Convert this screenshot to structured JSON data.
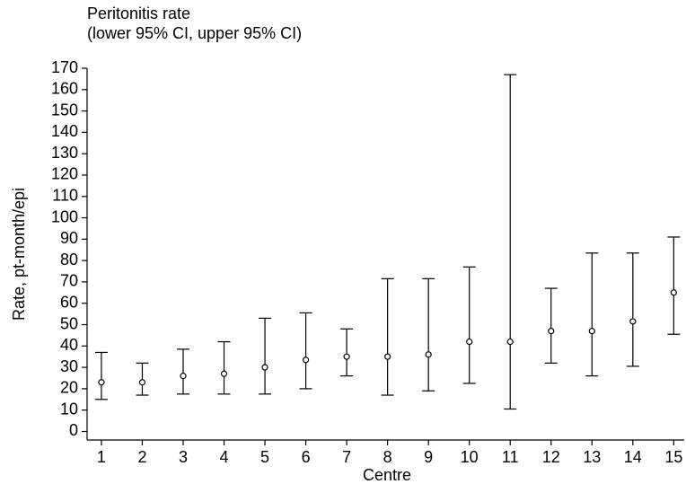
{
  "chart_data": {
    "type": "errorbar",
    "title": "Peritonitis rate",
    "subtitle": "(lower 95% CI, upper 95% CI)",
    "y_label": "Rate, pt-month/epi",
    "x_label": "Centre",
    "x": [
      1,
      2,
      3,
      4,
      5,
      6,
      7,
      8,
      9,
      10,
      11,
      12,
      13,
      14,
      15
    ],
    "series": [
      {
        "color": "#000000",
        "values": [
          23,
          23,
          26,
          27,
          30,
          33.5,
          35,
          35,
          36,
          42,
          42,
          47,
          47,
          51.5,
          65
        ],
        "lower": [
          15,
          17,
          17.5,
          17.5,
          17.5,
          20,
          26,
          17,
          19,
          22.5,
          10.5,
          32,
          26,
          30.5,
          45.5
        ],
        "upper": [
          37,
          32,
          38.5,
          42,
          53,
          55.5,
          48,
          71.5,
          71.5,
          77,
          167,
          67,
          83.5,
          83.5,
          91
        ]
      }
    ],
    "xlim": [
      0.65,
      15.3
    ],
    "ylim": [
      -4,
      170
    ],
    "xticks": [
      1,
      2,
      3,
      4,
      5,
      6,
      7,
      8,
      9,
      10,
      11,
      12,
      13,
      14,
      15
    ],
    "yticks": [
      0,
      10,
      20,
      30,
      40,
      50,
      60,
      70,
      80,
      90,
      100,
      110,
      120,
      130,
      140,
      150,
      160,
      170
    ]
  }
}
